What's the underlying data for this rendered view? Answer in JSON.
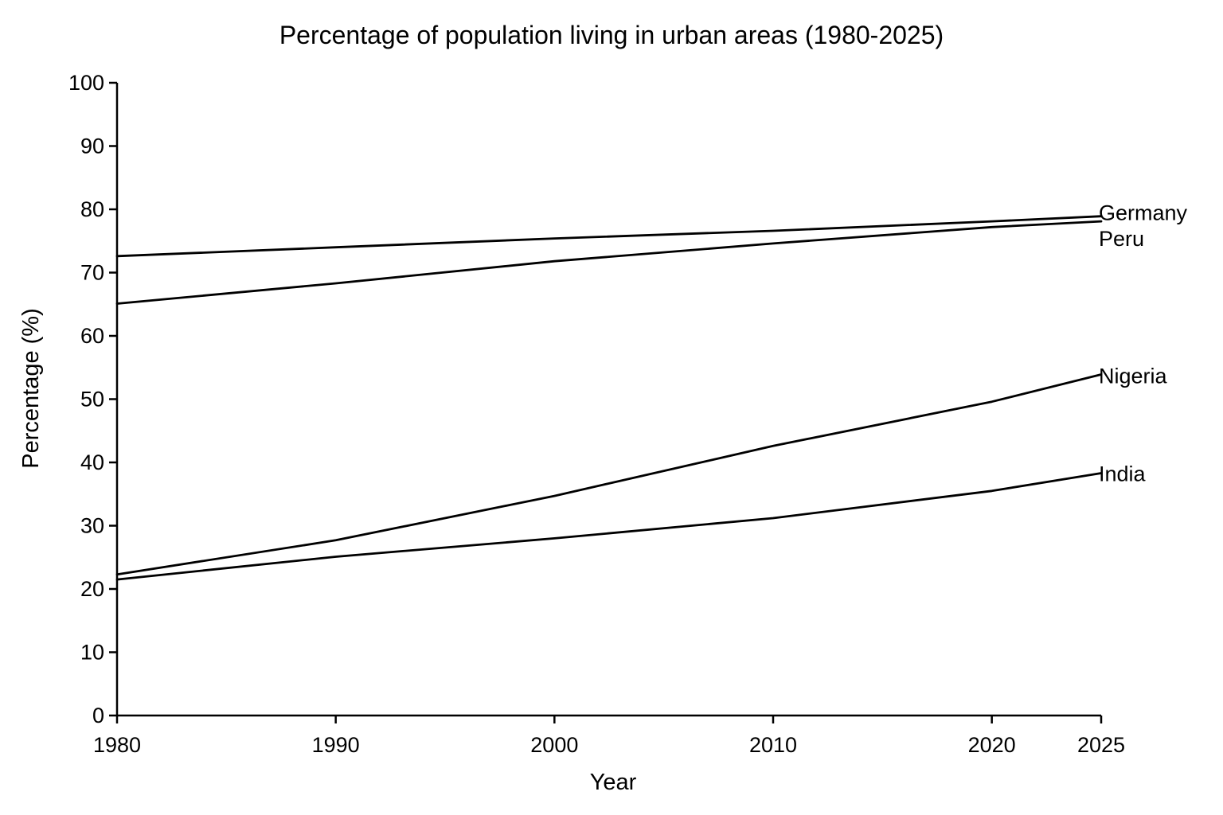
{
  "chart_data": {
    "type": "line",
    "title": "Percentage of population living in urban areas (1980-2025)",
    "xlabel": "Year",
    "ylabel": "Percentage (%)",
    "xlim": [
      1980,
      2025
    ],
    "ylim": [
      0,
      100
    ],
    "x_ticks": [
      1980,
      1990,
      2000,
      2010,
      2020,
      2025
    ],
    "y_ticks": [
      0,
      10,
      20,
      30,
      40,
      50,
      60,
      70,
      80,
      90,
      100
    ],
    "grid": false,
    "legend": "none",
    "series": [
      {
        "name": "Germany",
        "color": "#000000",
        "points": [
          [
            1980,
            72.6
          ],
          [
            1990,
            74.0
          ],
          [
            2000,
            75.4
          ],
          [
            2010,
            76.6
          ],
          [
            2020,
            78.1
          ],
          [
            2025,
            78.9
          ]
        ]
      },
      {
        "name": "Peru",
        "color": "#000000",
        "points": [
          [
            1980,
            65.1
          ],
          [
            1990,
            68.3
          ],
          [
            2000,
            71.8
          ],
          [
            2010,
            74.6
          ],
          [
            2020,
            77.2
          ],
          [
            2025,
            78.1
          ]
        ]
      },
      {
        "name": "Nigeria",
        "color": "#000000",
        "points": [
          [
            1980,
            22.3
          ],
          [
            1990,
            27.7
          ],
          [
            2000,
            34.7
          ],
          [
            2010,
            42.6
          ],
          [
            2020,
            49.6
          ],
          [
            2025,
            53.9
          ]
        ]
      },
      {
        "name": "India",
        "color": "#000000",
        "points": [
          [
            1980,
            21.5
          ],
          [
            1990,
            25.1
          ],
          [
            2000,
            28.0
          ],
          [
            2010,
            31.2
          ],
          [
            2020,
            35.5
          ],
          [
            2025,
            38.3
          ]
        ]
      }
    ]
  }
}
